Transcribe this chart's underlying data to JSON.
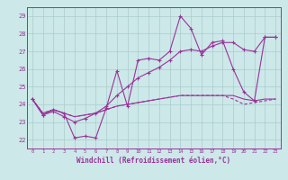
{
  "xlabel": "Windchill (Refroidissement éolien,°C)",
  "bg_color": "#cce8e8",
  "line_color": "#993399",
  "grid_color": "#aacccc",
  "ylim": [
    21.5,
    29.5
  ],
  "yticks": [
    22,
    23,
    24,
    25,
    26,
    27,
    28,
    29
  ],
  "xticks": [
    0,
    1,
    2,
    3,
    4,
    5,
    6,
    7,
    8,
    9,
    10,
    11,
    12,
    13,
    14,
    15,
    16,
    17,
    18,
    19,
    20,
    21,
    22,
    23
  ],
  "series": [
    [
      24.3,
      23.4,
      23.7,
      23.5,
      22.1,
      22.2,
      22.1,
      23.8,
      25.9,
      23.9,
      26.5,
      26.6,
      26.5,
      27.0,
      29.0,
      28.3,
      26.8,
      27.5,
      27.6,
      26.0,
      24.7,
      24.2,
      27.8,
      27.8
    ],
    [
      24.3,
      23.4,
      23.6,
      23.3,
      23.0,
      23.2,
      23.5,
      23.9,
      24.5,
      25.0,
      25.5,
      25.8,
      26.1,
      26.5,
      27.0,
      27.1,
      27.0,
      27.3,
      27.5,
      27.5,
      27.1,
      27.0,
      27.8,
      27.8
    ],
    [
      24.3,
      23.5,
      23.7,
      23.5,
      23.3,
      23.4,
      23.5,
      23.7,
      23.9,
      24.0,
      24.1,
      24.2,
      24.3,
      24.4,
      24.5,
      24.5,
      24.5,
      24.5,
      24.5,
      24.5,
      24.3,
      24.2,
      24.3,
      24.3
    ],
    [
      24.3,
      23.5,
      23.7,
      23.5,
      23.3,
      23.4,
      23.5,
      23.7,
      23.9,
      24.0,
      24.1,
      24.2,
      24.3,
      24.4,
      24.5,
      24.5,
      24.5,
      24.5,
      24.5,
      24.3,
      24.0,
      24.1,
      24.2,
      24.3
    ]
  ],
  "linestyles": [
    "-",
    "-",
    "-",
    "-"
  ],
  "figsize": [
    3.2,
    2.0
  ],
  "dpi": 100
}
